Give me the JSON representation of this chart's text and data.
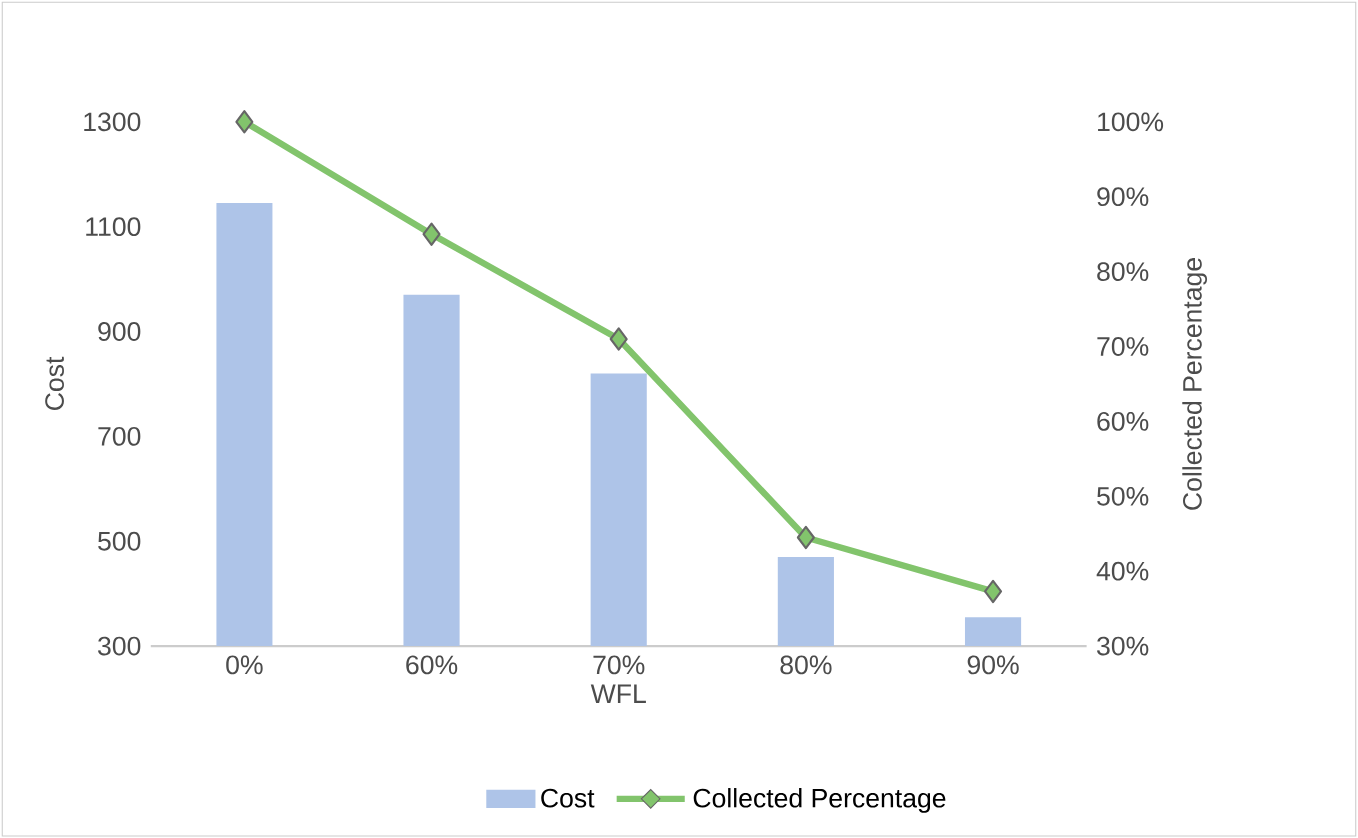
{
  "chart_data": {
    "type": "bar",
    "categories": [
      "0%",
      "60%",
      "70%",
      "80%",
      "90%"
    ],
    "xlabel": "WFL",
    "ylabel": "Cost",
    "y2label": "Collected Percentage",
    "ylim": [
      300,
      1300
    ],
    "yticks": [
      300,
      500,
      700,
      900,
      1100,
      1300
    ],
    "y2lim": [
      30,
      100
    ],
    "y2ticks": [
      {
        "value": 30,
        "label": "30%"
      },
      {
        "value": 40,
        "label": "40%"
      },
      {
        "value": 50,
        "label": "50%"
      },
      {
        "value": 60,
        "label": "60%"
      },
      {
        "value": 70,
        "label": "70%"
      },
      {
        "value": 80,
        "label": "80%"
      },
      {
        "value": 90,
        "label": "90%"
      },
      {
        "value": 100,
        "label": "100%"
      }
    ],
    "series": [
      {
        "name": "Cost",
        "color": "#aec4e8",
        "values": [
          1145,
          970,
          820,
          470,
          355
        ]
      },
      {
        "name": "Collected Percentage",
        "type": "line",
        "axis": "y2",
        "color": "#82c46c",
        "marker": "diamond",
        "values": [
          100,
          85,
          71,
          44.5,
          37.3
        ]
      }
    ],
    "legend": "bottom",
    "grid": false
  }
}
